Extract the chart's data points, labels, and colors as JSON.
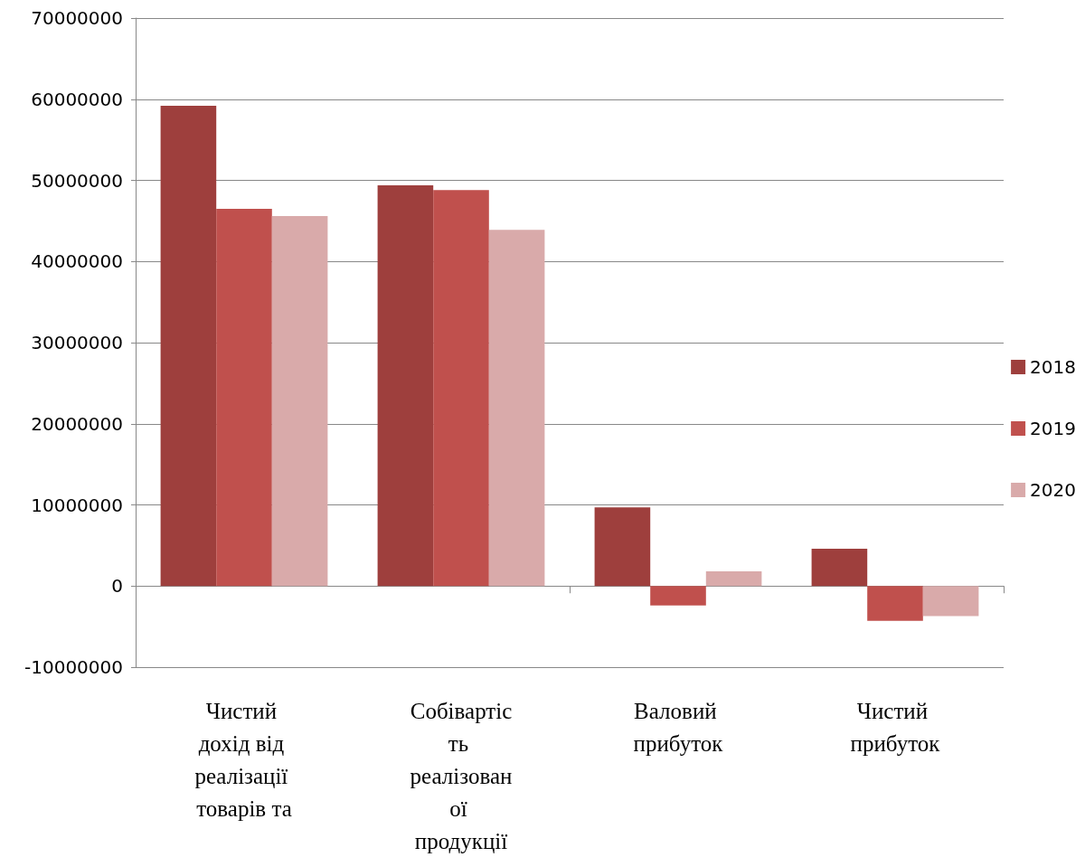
{
  "chart_data": {
    "type": "bar",
    "categories": [
      "Чистий дохід від реалізації товарів та",
      "Собівартість реалізованої продукції",
      "Валовий прибуток",
      "Чистий прибуток"
    ],
    "series": [
      {
        "name": "2018",
        "color": "#9e3f3d",
        "values": [
          59200000,
          49400000,
          9700000,
          4600000
        ]
      },
      {
        "name": "2019",
        "color": "#c0504d",
        "values": [
          46500000,
          48800000,
          -2400000,
          -4300000
        ]
      },
      {
        "name": "2020",
        "color": "#d9aaaa",
        "values": [
          45600000,
          43900000,
          1800000,
          -3700000
        ]
      }
    ],
    "ylim": [
      -10000000,
      70000000
    ],
    "yticks": [
      -10000000,
      0,
      10000000,
      20000000,
      30000000,
      40000000,
      50000000,
      60000000,
      70000000
    ],
    "grid": "y",
    "legend": "right"
  }
}
